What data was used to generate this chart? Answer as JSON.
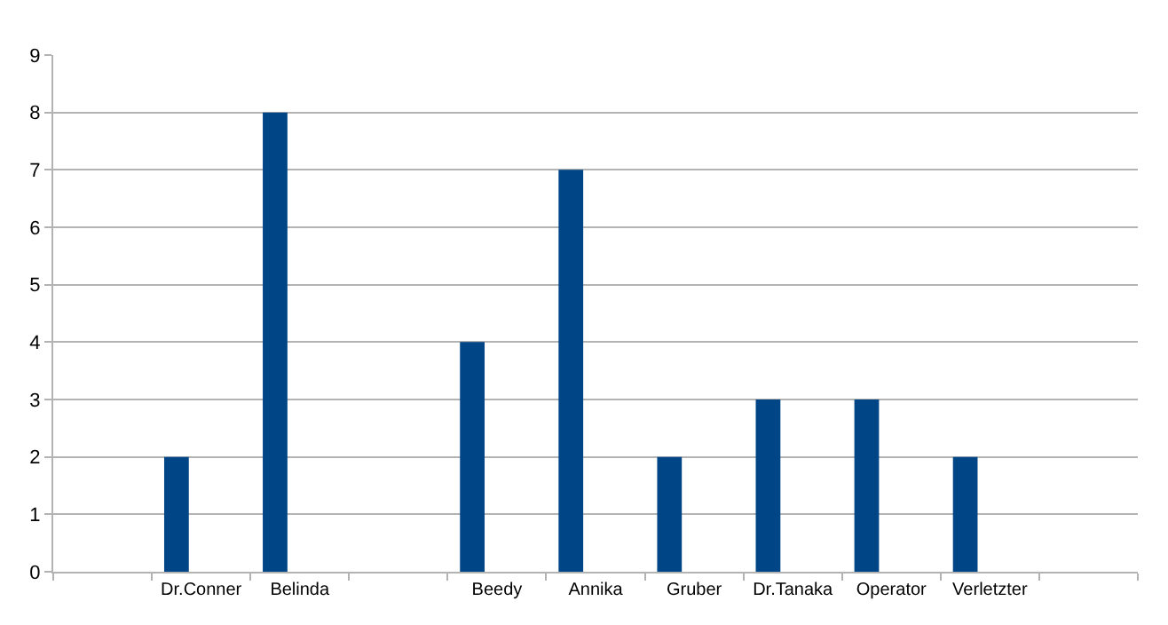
{
  "chart_data": {
    "type": "bar",
    "categories": [
      null,
      "Dr.Conner",
      "Belinda",
      null,
      "Beedy",
      "Annika",
      "Gruber",
      "Dr.Tanaka",
      "Operator",
      "Verletzter",
      null
    ],
    "values": [
      null,
      2,
      8,
      null,
      4,
      7,
      2,
      3,
      3,
      2,
      null
    ],
    "color": "#004586",
    "ylim": [
      0,
      9
    ],
    "yticks": [
      0,
      1,
      2,
      3,
      4,
      5,
      6,
      7,
      8,
      9
    ],
    "grid": "y",
    "legend": false
  }
}
